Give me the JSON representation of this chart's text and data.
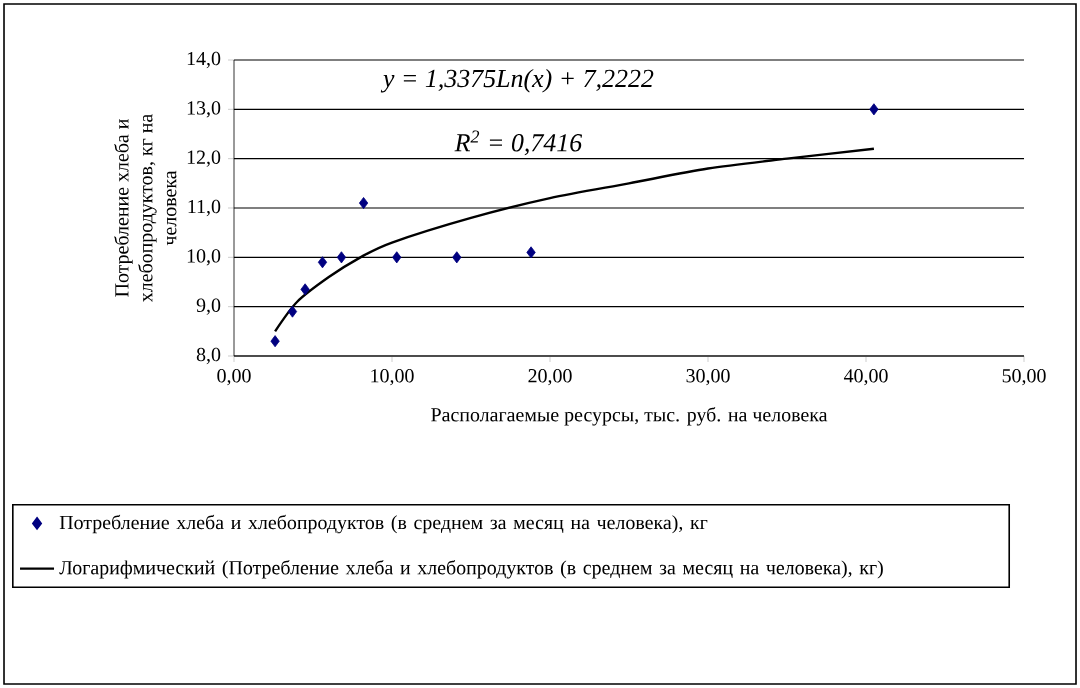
{
  "chart_data": {
    "type": "scatter",
    "xlabel": "Располагаемые ресурсы, тыс. руб. на человека",
    "ylabel": "Потребление хлеба и хлебопродуктов, кг на человека",
    "annotations": [
      "y = 1,3375Ln(x) + 7,2222",
      "R$^{2}$ = 0,7416"
    ],
    "series": [
      {
        "name": "Потребление хлеба и хлебопродуктов (в среднем за месяц на человека), кг",
        "color": "#000080",
        "marker": "diamond",
        "x": [
          2.6,
          3.7,
          4.5,
          5.6,
          6.8,
          8.2,
          10.3,
          14.1,
          18.8,
          40.5
        ],
        "values": [
          8.3,
          8.9,
          9.35,
          9.9,
          10.0,
          11.1,
          10.0,
          10.0,
          10.1,
          13.0
        ]
      },
      {
        "name": "Логарифмический (Потребление хлеба и хлебопродуктов (в среднем за месяц на человека), кг)",
        "type": "line",
        "color": "#000000",
        "marker": "none",
        "line_style": "solid",
        "x": [
          2.6,
          4,
          6,
          8,
          10,
          15,
          20,
          25,
          30,
          35,
          40.5
        ],
        "values": [
          8.5,
          9.1,
          9.6,
          10.0,
          10.3,
          10.8,
          11.2,
          11.5,
          11.8,
          12.0,
          12.2
        ]
      }
    ],
    "xlim": [
      0,
      50
    ],
    "ylim": [
      8,
      14
    ],
    "xticks": [
      {
        "value": 0,
        "label": "0,00"
      },
      {
        "value": 10,
        "label": "10,00"
      },
      {
        "value": 20,
        "label": "20,00"
      },
      {
        "value": 30,
        "label": "30,00"
      },
      {
        "value": 40,
        "label": "40,00"
      },
      {
        "value": 50,
        "label": "50,00"
      }
    ],
    "yticks": [
      {
        "value": 8,
        "label": "8,0"
      },
      {
        "value": 9,
        "label": "9,0"
      },
      {
        "value": 10,
        "label": "10,0"
      },
      {
        "value": 11,
        "label": "11,0"
      },
      {
        "value": 12,
        "label": "12,0"
      },
      {
        "value": 13,
        "label": "13,0"
      },
      {
        "value": 14,
        "label": "14,0"
      }
    ],
    "grid": "y",
    "legend": "bottom"
  }
}
